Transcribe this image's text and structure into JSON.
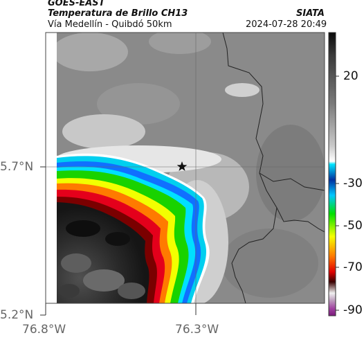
{
  "header": {
    "satellite": "GOES-EAST",
    "product": "Temperatura de Brillo CH13",
    "route": "Vía Medellín - Quibdó 50km",
    "source": "SIATA",
    "datetime": "2024-07-28 20:49"
  },
  "map": {
    "y_ticks": [
      "5.7°N",
      "5.2°N"
    ],
    "x_ticks": [
      "76.8°W",
      "76.3°W"
    ],
    "marker": "star",
    "colors": {
      "cold_core": "#1a1a1a",
      "red": "#e4001b",
      "orange": "#ff7a00",
      "yellow": "#f3ff00",
      "green": "#19d200",
      "blue": "#1070ff",
      "cyan": "#00cfef",
      "gray_field": "#8a8a8a"
    }
  },
  "colorbar": {
    "labels": [
      "20",
      "-30",
      "-50",
      "-70",
      "-90"
    ]
  }
}
